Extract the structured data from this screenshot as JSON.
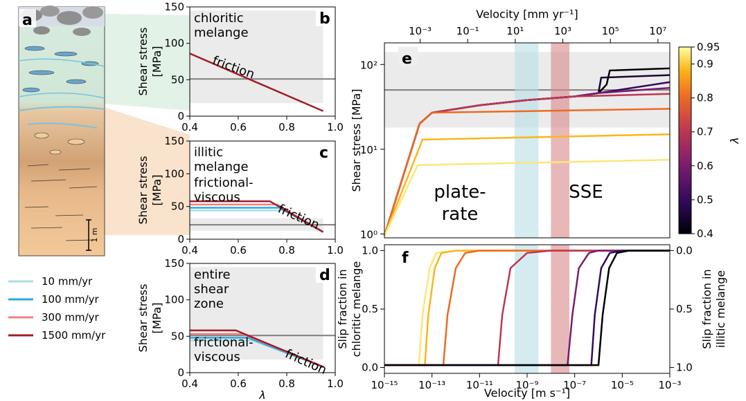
{
  "colors": {
    "shade": "#ebebeb",
    "gray_line": "#7f7f7f",
    "v10": "#a8dde3",
    "v100": "#29a8e0",
    "v300": "#f08080",
    "v1500": "#a01c28",
    "plate_rate_band": "#b7dfe4",
    "sse_band": "#d98888",
    "column_blue": "#78c3dc"
  },
  "legend": [
    {
      "label": "10 mm/yr",
      "color": "#a8dde3"
    },
    {
      "label": "100 mm/yr",
      "color": "#29a8e0"
    },
    {
      "label": "300 mm/yr",
      "color": "#f08080"
    },
    {
      "label": "1500 mm/yr",
      "color": "#a01c28"
    }
  ],
  "column": {
    "letter": "a",
    "scale_label": "1 m"
  },
  "chart_data": [
    {
      "panel": "b",
      "type": "line",
      "text_label": "chloritic\nmelange",
      "annotation": "friction",
      "xlabel": "",
      "ylabel": "Shear stress\n[MPa]",
      "xlim": [
        0.4,
        1.0
      ],
      "ylim": [
        0,
        150
      ],
      "xticks": [
        0.4,
        0.6,
        0.8,
        1.0
      ],
      "yticks": [
        0,
        50,
        100,
        150
      ],
      "shade_y": [
        18,
        145
      ],
      "hline": 51,
      "series": [
        {
          "x": [
            0.4,
            0.95
          ],
          "y": [
            86,
            7
          ],
          "color": "#a01c28"
        }
      ]
    },
    {
      "panel": "c",
      "type": "line",
      "text_label": "illitic\nmelange",
      "region_label": "frictional-\nviscous",
      "annotation": "friction",
      "xlabel": "",
      "ylabel": "Shear stress\n[MPa]",
      "xlim": [
        0.4,
        1.0
      ],
      "ylim": [
        0,
        150
      ],
      "xticks": [
        0.4,
        0.6,
        0.8,
        1.0
      ],
      "yticks": [
        0,
        50,
        100,
        150
      ],
      "shade_y": [
        13,
        32
      ],
      "hline": 22,
      "series": [
        {
          "x": [
            0.4,
            0.79,
            0.95
          ],
          "y": [
            44,
            44,
            11
          ],
          "color": "#a8dde3"
        },
        {
          "x": [
            0.4,
            0.77,
            0.95
          ],
          "y": [
            48,
            48,
            11
          ],
          "color": "#29a8e0"
        },
        {
          "x": [
            0.4,
            0.76,
            0.95
          ],
          "y": [
            53,
            53,
            11
          ],
          "color": "#f08080"
        },
        {
          "x": [
            0.4,
            0.73,
            0.95
          ],
          "y": [
            58,
            58,
            11
          ],
          "color": "#a01c28"
        }
      ]
    },
    {
      "panel": "d",
      "type": "line",
      "text_label": "entire\nshear\nzone",
      "region_label": "frictional-\nviscous",
      "annotation": "friction",
      "xlabel": "λ",
      "ylabel": "Shear stress\n[MPa]",
      "xlim": [
        0.4,
        1.0
      ],
      "ylim": [
        0,
        150
      ],
      "xticks": [
        0.4,
        0.6,
        0.8,
        1.0
      ],
      "yticks": [
        0,
        50,
        100,
        150
      ],
      "shade_y": [
        18,
        145
      ],
      "hline": 51,
      "series": [
        {
          "x": [
            0.4,
            0.66,
            0.95
          ],
          "y": [
            44,
            44,
            8
          ],
          "color": "#a8dde3"
        },
        {
          "x": [
            0.4,
            0.64,
            0.95
          ],
          "y": [
            48,
            48,
            8
          ],
          "color": "#29a8e0"
        },
        {
          "x": [
            0.4,
            0.62,
            0.95
          ],
          "y": [
            53,
            53,
            8
          ],
          "color": "#f08080"
        },
        {
          "x": [
            0.4,
            0.59,
            0.95
          ],
          "y": [
            58,
            58,
            8
          ],
          "color": "#a01c28"
        }
      ]
    },
    {
      "panel": "e",
      "type": "line",
      "xlabel_top": "Velocity [mm yr⁻¹]",
      "ylabel": "Shear stress [MPa]",
      "xscale": "log",
      "yscale": "log",
      "xlim": [
        1e-15,
        0.001
      ],
      "ylim": [
        0.9,
        180
      ],
      "yticks": [
        1,
        10,
        100
      ],
      "top_xticks": [
        "10⁻³",
        "10⁻¹",
        "10¹",
        "10³",
        "10⁵",
        "10⁷"
      ],
      "shade_y": [
        18,
        140
      ],
      "hline": 50,
      "band_labels": {
        "plate_rate": "plate-\nrate",
        "sse": "SSE"
      },
      "colorbar": {
        "label": "λ",
        "range": [
          0.4,
          0.95
        ],
        "ticks": [
          0.4,
          0.5,
          0.6,
          0.7,
          0.8,
          0.9,
          0.95
        ]
      },
      "series": [
        {
          "lambda": 0.95,
          "x": [
            1e-15,
            2.5e-14,
            0.001
          ],
          "y": [
            0.95,
            6.5,
            7.5
          ]
        },
        {
          "lambda": 0.9,
          "x": [
            1e-15,
            4e-14,
            0.001
          ],
          "y": [
            0.95,
            13,
            15
          ]
        },
        {
          "lambda": 0.8,
          "x": [
            1e-15,
            3e-14,
            1e-13,
            0.001
          ],
          "y": [
            0.95,
            20,
            27,
            30
          ]
        },
        {
          "lambda": 0.7,
          "x": [
            1e-15,
            3e-14,
            1e-13,
            1e-11,
            1e-09,
            1e-07,
            0.001
          ],
          "y": [
            0.95,
            20,
            27,
            33,
            38,
            42,
            45
          ]
        },
        {
          "lambda": 0.6,
          "x": [
            1e-15,
            3e-14,
            1e-13,
            1e-11,
            1e-09,
            1e-07,
            1e-06,
            0.001
          ],
          "y": [
            0.95,
            20,
            27,
            33,
            38,
            42,
            46,
            53
          ]
        },
        {
          "lambda": 0.5,
          "x": [
            1e-15,
            3e-14,
            1e-13,
            1e-11,
            1e-09,
            1e-07,
            1e-06,
            0.001
          ],
          "y": [
            0.95,
            20,
            27,
            33,
            38,
            42,
            46,
            62
          ]
        },
        {
          "lambda": 0.45,
          "x": [
            1e-15,
            3e-14,
            1e-13,
            1e-11,
            1e-09,
            1e-07,
            1e-06,
            1.3e-06,
            0.001
          ],
          "y": [
            0.95,
            20,
            27,
            33,
            38,
            42,
            46,
            70,
            75
          ]
        },
        {
          "lambda": 0.4,
          "x": [
            1e-15,
            3e-14,
            1e-13,
            1e-11,
            1e-09,
            1e-07,
            1e-06,
            2.2e-06,
            3e-06,
            0.001
          ],
          "y": [
            0.95,
            20,
            27,
            33,
            38,
            42,
            46,
            58,
            85,
            90
          ]
        }
      ],
      "bands": {
        "plate_rate": [
          3e-10,
          3e-09
        ],
        "sse": [
          1e-08,
          6e-08
        ]
      }
    },
    {
      "panel": "f",
      "type": "line",
      "xlabel": "Velocity [m s⁻¹]",
      "ylabel": "Slip fraction in\nchloritic melange",
      "ylabel_right": "Slip fraction in\nillitic melange",
      "xscale": "log",
      "xlim": [
        1e-15,
        0.001
      ],
      "ylim": [
        -0.05,
        1.05
      ],
      "xticks": [
        "10⁻¹⁵",
        "10⁻¹³",
        "10⁻¹¹",
        "10⁻⁹",
        "10⁻⁷",
        "10⁻⁵",
        "10⁻³"
      ],
      "yticks": [
        "0.0",
        "0.5",
        "1.0"
      ],
      "yticks_right": [
        "1.0",
        "0.5",
        "0.0"
      ],
      "series": [
        {
          "lambda": 0.95,
          "x": [
            1e-15,
            2.8e-14,
            4e-14,
            8e-14,
            1.5e-13,
            1e-12,
            0.001
          ],
          "y": [
            0.02,
            0.02,
            0.45,
            0.85,
            0.98,
            1.0,
            1.0
          ]
        },
        {
          "lambda": 0.9,
          "x": [
            1e-15,
            5e-14,
            7e-14,
            1.3e-13,
            2.5e-13,
            1e-12,
            0.001
          ],
          "y": [
            0.02,
            0.02,
            0.45,
            0.85,
            0.98,
            1.0,
            1.0
          ]
        },
        {
          "lambda": 0.8,
          "x": [
            1e-15,
            3e-13,
            4.5e-13,
            1e-12,
            2.5e-12,
            1e-11,
            0.001
          ],
          "y": [
            0.02,
            0.02,
            0.45,
            0.85,
            0.98,
            1.0,
            1.0
          ]
        },
        {
          "lambda": 0.7,
          "x": [
            1e-15,
            6e-11,
            9e-11,
            2e-10,
            1e-09,
            1e-08,
            0.001
          ],
          "y": [
            0.02,
            0.02,
            0.45,
            0.85,
            0.98,
            1.0,
            1.0
          ]
        },
        {
          "lambda": 0.6,
          "x": [
            1e-15,
            5e-08,
            8e-08,
            1.5e-07,
            4e-07,
            1e-06,
            0.001
          ],
          "y": [
            0.02,
            0.02,
            0.45,
            0.85,
            0.98,
            1.0,
            1.0
          ]
        },
        {
          "lambda": 0.5,
          "x": [
            1e-15,
            5e-07,
            7e-07,
            1.3e-06,
            3e-06,
            1e-05,
            0.001
          ],
          "y": [
            0.02,
            0.02,
            0.45,
            0.85,
            0.98,
            1.0,
            1.0
          ]
        },
        {
          "lambda": 0.4,
          "x": [
            1e-15,
            1e-06,
            1.5e-06,
            2.8e-06,
            6e-06,
            2e-05,
            0.001
          ],
          "y": [
            0.02,
            0.02,
            0.45,
            0.85,
            0.98,
            1.0,
            1.0
          ]
        }
      ]
    }
  ]
}
